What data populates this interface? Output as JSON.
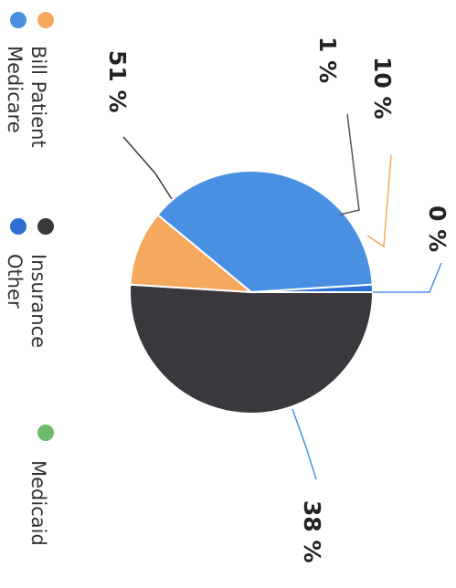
{
  "chart_data": {
    "type": "pie",
    "title": "",
    "slices": [
      {
        "label": "Insurance",
        "value": 51,
        "color": "#3a383d"
      },
      {
        "label": "Bill Patient",
        "value": 10,
        "color": "#f5a95e"
      },
      {
        "label": "Medicaid",
        "value": 0,
        "color": "#6dbb6a"
      },
      {
        "label": "Medicare",
        "value": 38,
        "color": "#4a90e2"
      },
      {
        "label": "Other",
        "value": 1,
        "color": "#2e6fd3"
      }
    ],
    "data_labels": [
      "51 %",
      "10 %",
      "0 %",
      "38 %",
      "1 %"
    ],
    "legend_position": "left",
    "legend": [
      {
        "label": "Bill Patient",
        "color": "#f5a95e"
      },
      {
        "label": "Medicare",
        "color": "#4a90e2"
      },
      {
        "label": "Insurance",
        "color": "#3a383d"
      },
      {
        "label": "Other",
        "color": "#2e6fd3"
      },
      {
        "label": "Medicaid",
        "color": "#6dbb6a"
      }
    ]
  }
}
